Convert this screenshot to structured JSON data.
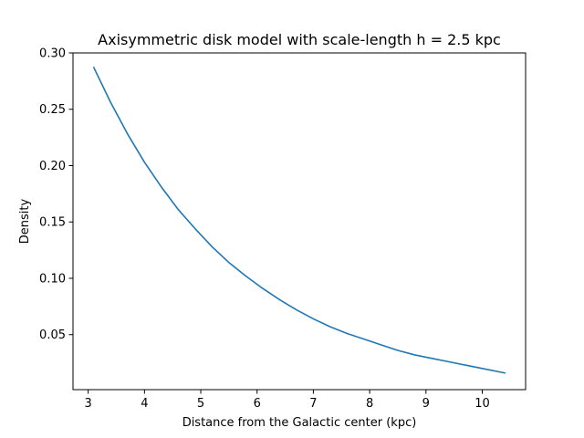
{
  "chart_data": {
    "type": "line",
    "title": "Axisymmetric disk model with scale-length h = 2.5 kpc",
    "xlabel": "Distance from the Galactic center (kpc)",
    "ylabel": "Density",
    "xlim": [
      2.73,
      10.77
    ],
    "ylim": [
      0.0012,
      0.3
    ],
    "xticks": [
      3,
      4,
      5,
      6,
      7,
      8,
      9,
      10
    ],
    "yticks": [
      0.05,
      0.1,
      0.15,
      0.2,
      0.25,
      0.3
    ],
    "xtick_labels": [
      "3",
      "4",
      "5",
      "6",
      "7",
      "8",
      "9",
      "10"
    ],
    "ytick_labels": [
      "0.05",
      "0.10",
      "0.15",
      "0.20",
      "0.25",
      "0.30"
    ],
    "grid": false,
    "legend": "none",
    "series": [
      {
        "color": "#1f77b4",
        "x": [
          3.1,
          3.4,
          3.7,
          4.0,
          4.3,
          4.6,
          4.9,
          5.2,
          5.5,
          5.8,
          6.1,
          6.4,
          6.7,
          7.0,
          7.3,
          7.6,
          7.9,
          8.2,
          8.5,
          8.8,
          9.1,
          9.4,
          9.7,
          10.0,
          10.4
        ],
        "y": [
          0.287,
          0.256,
          0.228,
          0.203,
          0.181,
          0.161,
          0.144,
          0.128,
          0.114,
          0.102,
          0.091,
          0.081,
          0.072,
          0.064,
          0.057,
          0.051,
          0.046,
          0.041,
          0.036,
          0.032,
          0.029,
          0.026,
          0.023,
          0.02,
          0.016
        ]
      }
    ]
  }
}
